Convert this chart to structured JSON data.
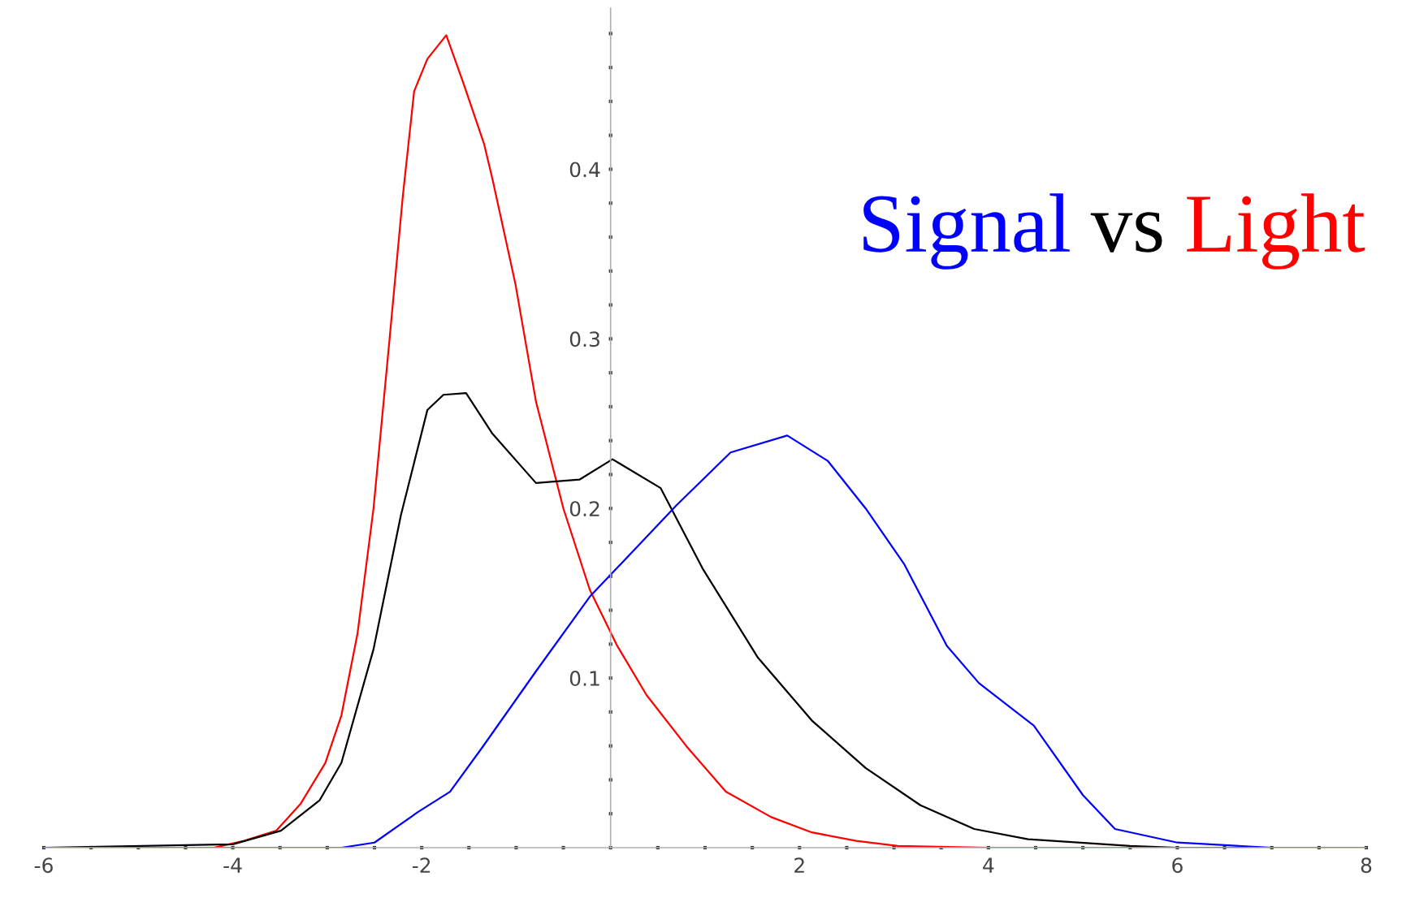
{
  "chart_data": {
    "type": "line",
    "annotations": [
      "vs"
    ],
    "legend": "top right",
    "xlim": [
      -6,
      8
    ],
    "ylim": [
      0,
      0.495
    ],
    "xticks": [
      -6,
      {
        "value": -5.5,
        "label": null
      },
      {
        "value": -5,
        "label": null
      },
      {
        "value": -4.5,
        "label": null
      },
      -4,
      {
        "value": -3.5,
        "label": null
      },
      {
        "value": -3,
        "label": null
      },
      {
        "value": -2.5,
        "label": null
      },
      -2,
      {
        "value": -1.5,
        "label": null
      },
      {
        "value": -1,
        "label": null
      },
      {
        "value": -0.5,
        "label": null
      },
      {
        "value": 0.5,
        "label": null
      },
      {
        "value": 1,
        "label": null
      },
      {
        "value": 1.5,
        "label": null
      },
      2,
      {
        "value": 2.5,
        "label": null
      },
      {
        "value": 3,
        "label": null
      },
      {
        "value": 3.5,
        "label": null
      },
      4,
      {
        "value": 4.5,
        "label": null
      },
      {
        "value": 5,
        "label": null
      },
      {
        "value": 5.5,
        "label": null
      },
      6,
      {
        "value": 6.5,
        "label": null
      },
      {
        "value": 7,
        "label": null
      },
      {
        "value": 7.5,
        "label": null
      },
      8
    ],
    "yticks": [
      {
        "value": 0,
        "label": null
      },
      {
        "value": 0.02,
        "label": null
      },
      {
        "value": 0.04,
        "label": null
      },
      {
        "value": 0.06,
        "label": null
      },
      {
        "value": 0.08,
        "label": null
      },
      0.1,
      {
        "value": 0.12,
        "label": null
      },
      {
        "value": 0.14,
        "label": null
      },
      {
        "value": 0.16,
        "label": null
      },
      {
        "value": 0.18,
        "label": null
      },
      0.2,
      {
        "value": 0.22,
        "label": null
      },
      {
        "value": 0.24,
        "label": null
      },
      {
        "value": 0.26,
        "label": null
      },
      {
        "value": 0.28,
        "label": null
      },
      0.3,
      {
        "value": 0.32,
        "label": null
      },
      {
        "value": 0.34,
        "label": null
      },
      {
        "value": 0.36,
        "label": null
      },
      {
        "value": 0.38,
        "label": null
      },
      0.4,
      {
        "value": 0.42,
        "label": null
      },
      {
        "value": 0.44,
        "label": null
      },
      {
        "value": 0.46,
        "label": null
      },
      {
        "value": 0.48,
        "label": null
      }
    ],
    "grid": false,
    "marker": "none",
    "line_style": "solid",
    "series": [
      {
        "name": "Light",
        "color": "#ff0000",
        "x": [
          -6,
          -4.2,
          -3.88,
          -3.54,
          -3.28,
          -3.02,
          -2.85,
          -2.68,
          -2.51,
          -2.34,
          -2.2,
          -2.08,
          -1.94,
          -1.74,
          -1.56,
          -1.34,
          -1.25,
          -1.01,
          -0.79,
          -0.5,
          -0.22,
          0.07,
          0.38,
          0.8,
          1.22,
          1.7,
          2.13,
          2.6,
          3.04,
          4,
          8
        ],
        "values": [
          0,
          0,
          0.004,
          0.01,
          0.026,
          0.05,
          0.078,
          0.126,
          0.2,
          0.3,
          0.384,
          0.446,
          0.465,
          0.479,
          0.451,
          0.415,
          0.394,
          0.333,
          0.263,
          0.2,
          0.152,
          0.119,
          0.09,
          0.06,
          0.033,
          0.018,
          0.009,
          0.004,
          0.001,
          0,
          0
        ]
      },
      {
        "color": "#000000",
        "x": [
          -6,
          -4,
          -3.49,
          -3.08,
          -2.85,
          -2.51,
          -2.22,
          -1.94,
          -1.77,
          -1.53,
          -1.25,
          -0.79,
          -0.33,
          0.02,
          0.53,
          0.98,
          1.56,
          2.13,
          2.7,
          3.28,
          3.85,
          4.42,
          5.5,
          6,
          8
        ],
        "values": [
          0,
          0.002,
          0.01,
          0.028,
          0.05,
          0.117,
          0.196,
          0.258,
          0.267,
          0.268,
          0.244,
          0.215,
          0.217,
          0.229,
          0.212,
          0.164,
          0.112,
          0.075,
          0.047,
          0.025,
          0.011,
          0.005,
          0.001,
          0,
          0
        ]
      },
      {
        "name": "Signal",
        "color": "#0000ff",
        "x": [
          -6,
          -2.85,
          -2.5,
          -2.04,
          -1.7,
          -1.36,
          -0.79,
          -0.22,
          0.7,
          1.27,
          1.87,
          2.3,
          2.7,
          3.11,
          3.56,
          3.9,
          4.48,
          5.0,
          5.34,
          6,
          7,
          8
        ],
        "values": [
          0,
          0,
          0.003,
          0.021,
          0.033,
          0.059,
          0.104,
          0.148,
          0.202,
          0.233,
          0.243,
          0.228,
          0.2,
          0.167,
          0.119,
          0.097,
          0.072,
          0.031,
          0.011,
          0.003,
          0,
          0
        ]
      }
    ]
  }
}
